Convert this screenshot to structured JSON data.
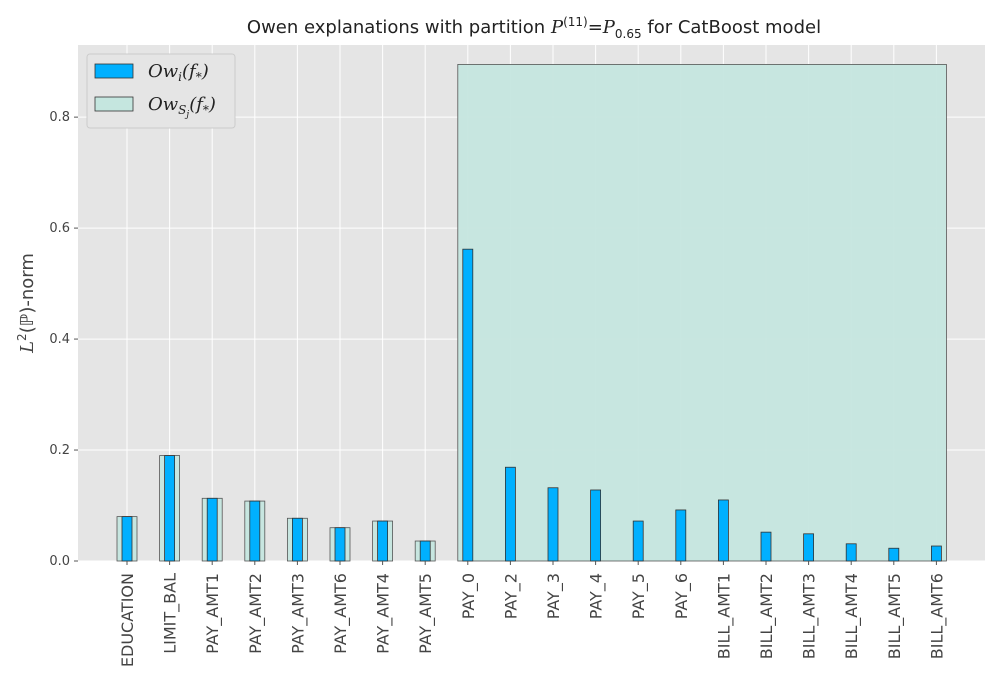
{
  "chart_data": {
    "type": "bar",
    "title": {
      "prefix": "Owen explanations with partition ",
      "sym": "P",
      "sup": "(11)",
      "eq": "=",
      "sym2": "P",
      "sub": "0.65",
      "suffix": " for CatBoost model"
    },
    "ylabel": {
      "main": "L",
      "sup": "2",
      "paren": "(ℙ)-norm"
    },
    "ylim": [
      0,
      0.93
    ],
    "yticks": [
      "0.0",
      "0.2",
      "0.4",
      "0.6",
      "0.8"
    ],
    "grid": true,
    "legend_position": "top-left",
    "categories": [
      "EDUCATION",
      "LIMIT_BAL",
      "PAY_AMT1",
      "PAY_AMT2",
      "PAY_AMT3",
      "PAY_AMT6",
      "PAY_AMT4",
      "PAY_AMT5",
      "PAY_0",
      "PAY_2",
      "PAY_3",
      "PAY_4",
      "PAY_5",
      "PAY_6",
      "BILL_AMT1",
      "BILL_AMT2",
      "BILL_AMT3",
      "BILL_AMT4",
      "BILL_AMT5",
      "BILL_AMT6"
    ],
    "series": [
      {
        "name": "Ow_i(f_*)",
        "legend": {
          "base": "Ow",
          "sub": "i",
          "arg": "(f",
          "argsub": "*",
          "close": ")"
        },
        "color": "#00b0ff",
        "values": [
          0.08,
          0.19,
          0.113,
          0.108,
          0.077,
          0.06,
          0.072,
          0.036,
          0.562,
          0.169,
          0.132,
          0.128,
          0.072,
          0.092,
          0.11,
          0.052,
          0.049,
          0.031,
          0.023,
          0.027
        ]
      },
      {
        "name": "Ow_{S_j}(f_*)",
        "legend": {
          "base": "Ow",
          "sub": "S",
          "subsub": "j",
          "arg": "(f",
          "argsub": "*",
          "close": ")"
        },
        "color": "#c5e6df",
        "groups": [
          {
            "start": 0,
            "end": 0,
            "value": 0.08
          },
          {
            "start": 1,
            "end": 1,
            "value": 0.19
          },
          {
            "start": 2,
            "end": 2,
            "value": 0.113
          },
          {
            "start": 3,
            "end": 3,
            "value": 0.108
          },
          {
            "start": 4,
            "end": 4,
            "value": 0.077
          },
          {
            "start": 5,
            "end": 5,
            "value": 0.06
          },
          {
            "start": 6,
            "end": 6,
            "value": 0.072
          },
          {
            "start": 7,
            "end": 7,
            "value": 0.036
          },
          {
            "start": 8,
            "end": 19,
            "value": 0.895
          }
        ]
      }
    ]
  },
  "colors": {
    "plot_background": "#e5e5e5",
    "grid": "#ffffff",
    "edge": "#333333"
  }
}
